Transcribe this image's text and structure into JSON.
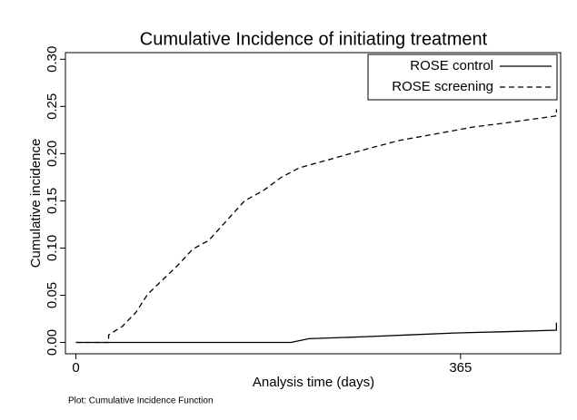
{
  "chart_data": {
    "type": "line",
    "title": "Cumulative Incidence of initiating treatment",
    "x_label": "Analysis time (days)",
    "y_label": "Cumulative incidence",
    "note": "Plot: Cumulative Incidence Function",
    "xlim": [
      -10,
      460
    ],
    "ylim": [
      -0.012,
      0.307
    ],
    "xticks": [
      0,
      365
    ],
    "yticks": [
      {
        "value": 0,
        "label": "0.00"
      },
      {
        "value": 0.05,
        "label": "0.05"
      },
      {
        "value": 0.1,
        "label": "0.10"
      },
      {
        "value": 0.15,
        "label": "0.15"
      },
      {
        "value": 0.2,
        "label": "0.20"
      },
      {
        "value": 0.25,
        "label": "0.25"
      },
      {
        "value": 0.3,
        "label": "0.30"
      }
    ],
    "legend": "top-right",
    "series": [
      {
        "name": "ROSE control",
        "color": "#000000",
        "dash": "none",
        "x": [
          0,
          204,
          221,
          273,
          316,
          359,
          411,
          456,
          456
        ],
        "values": [
          0,
          0,
          0.004,
          0.006,
          0.008,
          0.01,
          0.0115,
          0.013,
          0.021
        ]
      },
      {
        "name": "ROSE screening",
        "color": "#000000",
        "dash": "6 4",
        "x": [
          0,
          31,
          31,
          44,
          57,
          68,
          81,
          96,
          111,
          126,
          143,
          160,
          178,
          195,
          212,
          238,
          273,
          307,
          342,
          376,
          411,
          456,
          456
        ],
        "values": [
          0,
          0,
          0.008,
          0.017,
          0.032,
          0.051,
          0.065,
          0.081,
          0.099,
          0.108,
          0.129,
          0.15,
          0.161,
          0.175,
          0.185,
          0.193,
          0.204,
          0.214,
          0.221,
          0.228,
          0.233,
          0.24,
          0.247
        ]
      }
    ]
  }
}
